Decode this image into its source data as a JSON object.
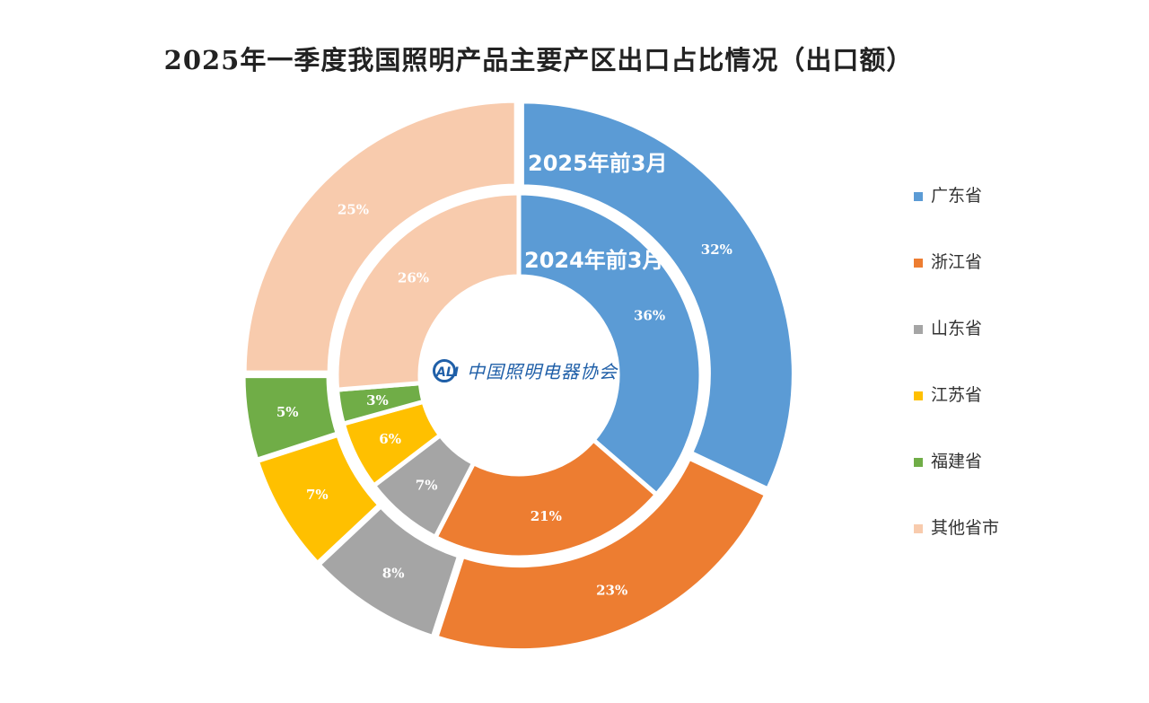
{
  "chart_data": {
    "type": "pie",
    "title": "2025年一季度我国照明产品主要产区出口占比情况（出口额）",
    "categories": [
      "广东省",
      "浙江省",
      "山东省",
      "江苏省",
      "福建省",
      "其他省市"
    ],
    "colors": [
      "#5b9bd5",
      "#ed7d31",
      "#a5a5a5",
      "#ffc000",
      "#70ad47",
      "#f8cbad"
    ],
    "series": [
      {
        "name": "2025年前3月",
        "values": [
          32,
          23,
          8,
          7,
          5,
          25
        ],
        "labels": [
          "32%",
          "23%",
          "8%",
          "7%",
          "5%",
          "25%"
        ]
      },
      {
        "name": "2024年前3月",
        "values": [
          36,
          21,
          7,
          6,
          3,
          26
        ],
        "labels": [
          "36%",
          "21%",
          "7%",
          "6%",
          "3%",
          "26%"
        ]
      }
    ],
    "legend_position": "right"
  },
  "logo": {
    "badge_text": "ALI",
    "text": "中国照明电器协会"
  }
}
